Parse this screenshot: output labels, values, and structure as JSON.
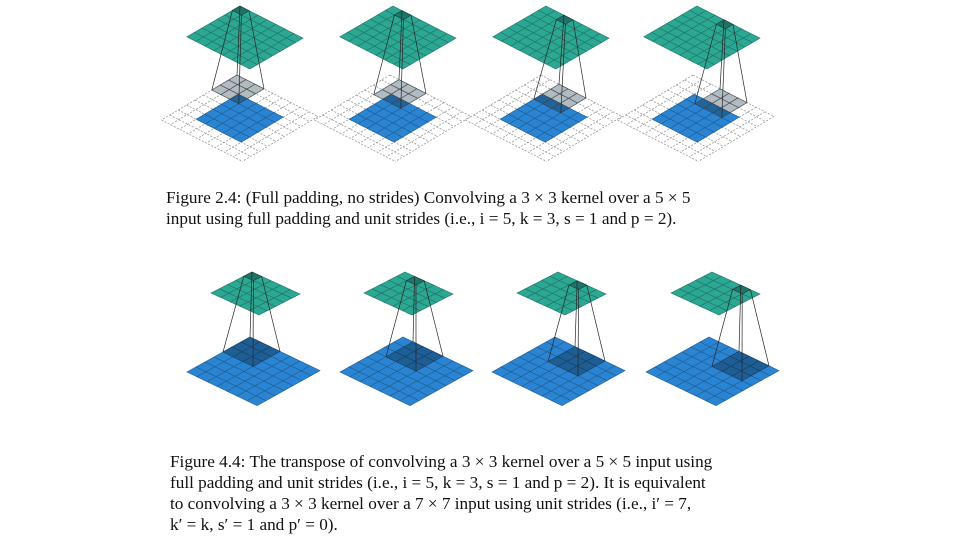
{
  "figure_1": {
    "label": "Figure 2.4:",
    "caption_lines": [
      "(Full padding, no strides) Convolving a 3 × 3 kernel over a 5 × 5",
      "input using full padding and unit strides (i.e., i = 5, k = 3, s = 1 and p = 2)."
    ],
    "input_size": 5,
    "padding": 2,
    "kernel_size": 3,
    "output_size": 7,
    "kernel_positions": [
      [
        0,
        0
      ],
      [
        0,
        1
      ],
      [
        0,
        2
      ],
      [
        0,
        3
      ]
    ],
    "output_positions": [
      [
        0,
        0
      ],
      [
        0,
        1
      ],
      [
        0,
        2
      ],
      [
        0,
        3
      ]
    ]
  },
  "figure_2": {
    "label": "Figure 4.4:",
    "caption_lines": [
      "The transpose of convolving a 3 × 3 kernel over a 5 × 5 input using",
      "full padding and unit strides (i.e., i = 5, k = 3, s = 1 and p = 2). It is equivalent",
      "to convolving a 3 × 3 kernel over a 7 × 7 input using unit strides (i.e., i′ = 7,",
      "k′ = k, s′ = 1 and p′ = 0)."
    ],
    "input_size": 7,
    "kernel_size": 3,
    "output_size": 5,
    "kernel_positions": [
      [
        0,
        0
      ],
      [
        0,
        1
      ],
      [
        0,
        2
      ],
      [
        0,
        3
      ]
    ],
    "output_positions": [
      [
        0,
        0
      ],
      [
        0,
        1
      ],
      [
        0,
        2
      ],
      [
        0,
        3
      ]
    ]
  },
  "colors": {
    "input_blue": "#2a84d2",
    "input_dark": "#1d5e94",
    "output_teal": "#2ba792",
    "output_dark": "#1f7468",
    "kernel_gray": "#a9b5bb",
    "line": "#262626",
    "dashed_grid": "#9a9a9a"
  }
}
